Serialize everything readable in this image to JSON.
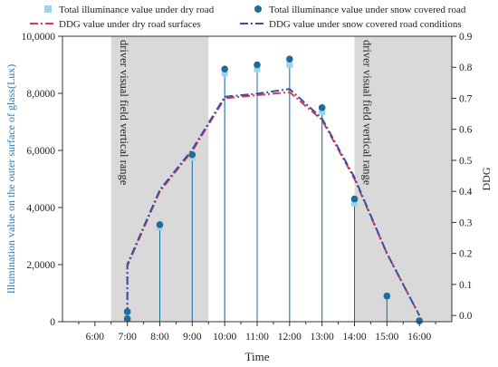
{
  "chart_data": {
    "type": "line",
    "title": "",
    "xlabel": "Time",
    "ylabel": "Illumination value on the outer surface of glass(Lux)",
    "y2label": "DDG",
    "categories": [
      "6:00",
      "7:00",
      "8:00",
      "9:00",
      "10:00",
      "11:00",
      "12:00",
      "13:00",
      "14:00",
      "15:00",
      "16:00"
    ],
    "xlim": [
      5.0,
      17.0
    ],
    "ylim": [
      0,
      10000
    ],
    "y2lim": [
      -0.02,
      0.9
    ],
    "y_ticks": [
      0,
      2000,
      4000,
      6000,
      8000,
      10000
    ],
    "y_tick_labels": [
      "0",
      "2,0000",
      "4,0000",
      "6,0000",
      "8,0000",
      "10,0000"
    ],
    "y2_ticks": [
      0.0,
      0.1,
      0.2,
      0.3,
      0.4,
      0.5,
      0.6,
      0.7,
      0.8,
      0.9
    ],
    "y2_tick_labels": [
      "0.0",
      "0.1",
      "0.2",
      "0.3",
      "0.4",
      "0.5",
      "0.6",
      "0.7",
      "0.8",
      "0.9"
    ],
    "shaded_regions": [
      {
        "from": 6.5,
        "to": 9.5,
        "label": "driver visual field vertical range"
      },
      {
        "from": 14.0,
        "to": 17.0,
        "label": "driver visual field vertical range"
      }
    ],
    "series": [
      {
        "name": "Total illuminance value under dry road",
        "type": "stem-square",
        "axis": "left",
        "color": "#9dd3ea",
        "x": [
          7,
          7,
          8,
          9,
          10,
          11,
          12,
          13,
          14,
          15,
          16
        ],
        "values": [
          300,
          100,
          3300,
          5750,
          8700,
          8850,
          9000,
          7350,
          4150,
          900,
          30
        ]
      },
      {
        "name": "Total illuminance value under snow covered road",
        "type": "stem-circle",
        "axis": "left",
        "color": "#1f6c9c",
        "x": [
          7,
          7,
          8,
          9,
          10,
          11,
          12,
          13,
          14,
          15,
          16
        ],
        "values": [
          350,
          100,
          3400,
          5850,
          8850,
          9000,
          9200,
          7500,
          4300,
          900,
          30
        ]
      },
      {
        "name": "DDG value under dry road surfaces",
        "type": "line",
        "axis": "right",
        "color": "#e0364a",
        "dash": "dash-dot",
        "x": [
          7,
          7,
          8,
          9,
          10,
          11,
          12,
          13,
          14,
          15,
          16
        ],
        "values": [
          0.0,
          0.16,
          0.4,
          0.53,
          0.7,
          0.71,
          0.72,
          0.63,
          0.44,
          0.2,
          0.0
        ]
      },
      {
        "name": "DDG value under snow covered road conditions",
        "type": "line",
        "axis": "right",
        "color": "#3a4fa8",
        "dash": "dash-dot",
        "x": [
          7,
          7,
          8,
          9,
          10,
          11,
          12,
          13,
          14,
          15,
          16
        ],
        "values": [
          0.0,
          0.165,
          0.405,
          0.535,
          0.705,
          0.715,
          0.73,
          0.635,
          0.445,
          0.2,
          0.0
        ]
      }
    ],
    "legend_position": "top",
    "grid": false
  }
}
